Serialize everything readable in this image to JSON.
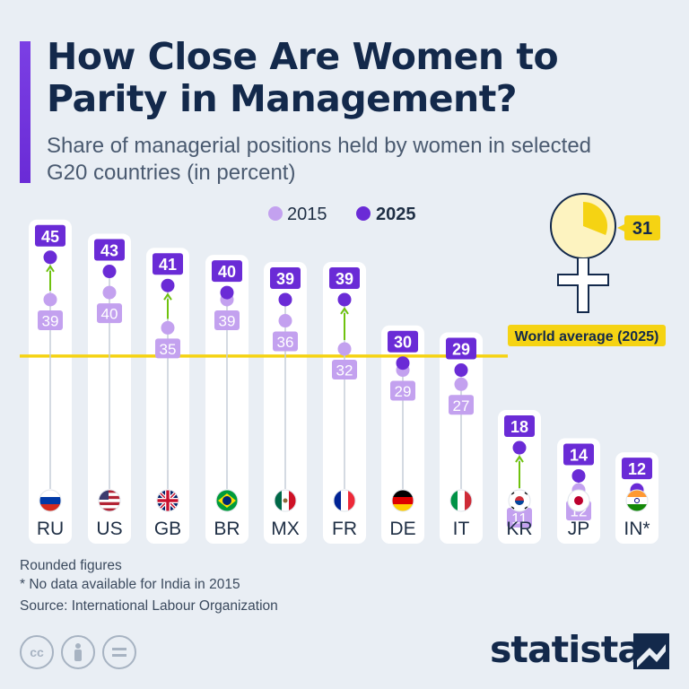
{
  "header": {
    "title": "How Close Are Women to Parity in Management?",
    "subtitle": "Share of managerial positions held by women in selected G20 countries (in percent)"
  },
  "legend": {
    "label_2015": "2015",
    "label_2025": "2025"
  },
  "world_average": {
    "label": "World average (2025)",
    "value": 31
  },
  "footnotes": {
    "line1": "Rounded figures",
    "line2": "* No data available for India in 2015",
    "source": "Source: International Labour Organization"
  },
  "brand": {
    "name": "statista"
  },
  "license_icons": [
    "cc-icon",
    "attribution-icon",
    "no-derivatives-icon"
  ],
  "colors": {
    "background": "#e9eef4",
    "title": "#13294b",
    "accent_2025": "#6a2bd6",
    "accent_2015": "#c3a1ef",
    "world_line": "#f5d313",
    "arrow": "#6fc20e"
  },
  "chart_data": {
    "type": "dot",
    "categories": [
      "RU",
      "US",
      "GB",
      "BR",
      "MX",
      "FR",
      "DE",
      "IT",
      "KR",
      "JP",
      "IN*"
    ],
    "series": [
      {
        "name": "2015",
        "values": [
          39,
          40,
          35,
          39,
          36,
          32,
          29,
          27,
          11,
          12,
          null
        ]
      },
      {
        "name": "2025",
        "values": [
          45,
          43,
          41,
          40,
          39,
          39,
          30,
          29,
          18,
          14,
          12
        ]
      }
    ],
    "reference_line": {
      "label": "World average (2025)",
      "value": 31
    },
    "arrows_shown_for": [
      "RU",
      "GB",
      "FR",
      "KR"
    ],
    "flags": [
      "russia-flag-icon",
      "usa-flag-icon",
      "uk-flag-icon",
      "brazil-flag-icon",
      "mexico-flag-icon",
      "france-flag-icon",
      "germany-flag-icon",
      "italy-flag-icon",
      "south-korea-flag-icon",
      "japan-flag-icon",
      "india-flag-icon"
    ]
  }
}
